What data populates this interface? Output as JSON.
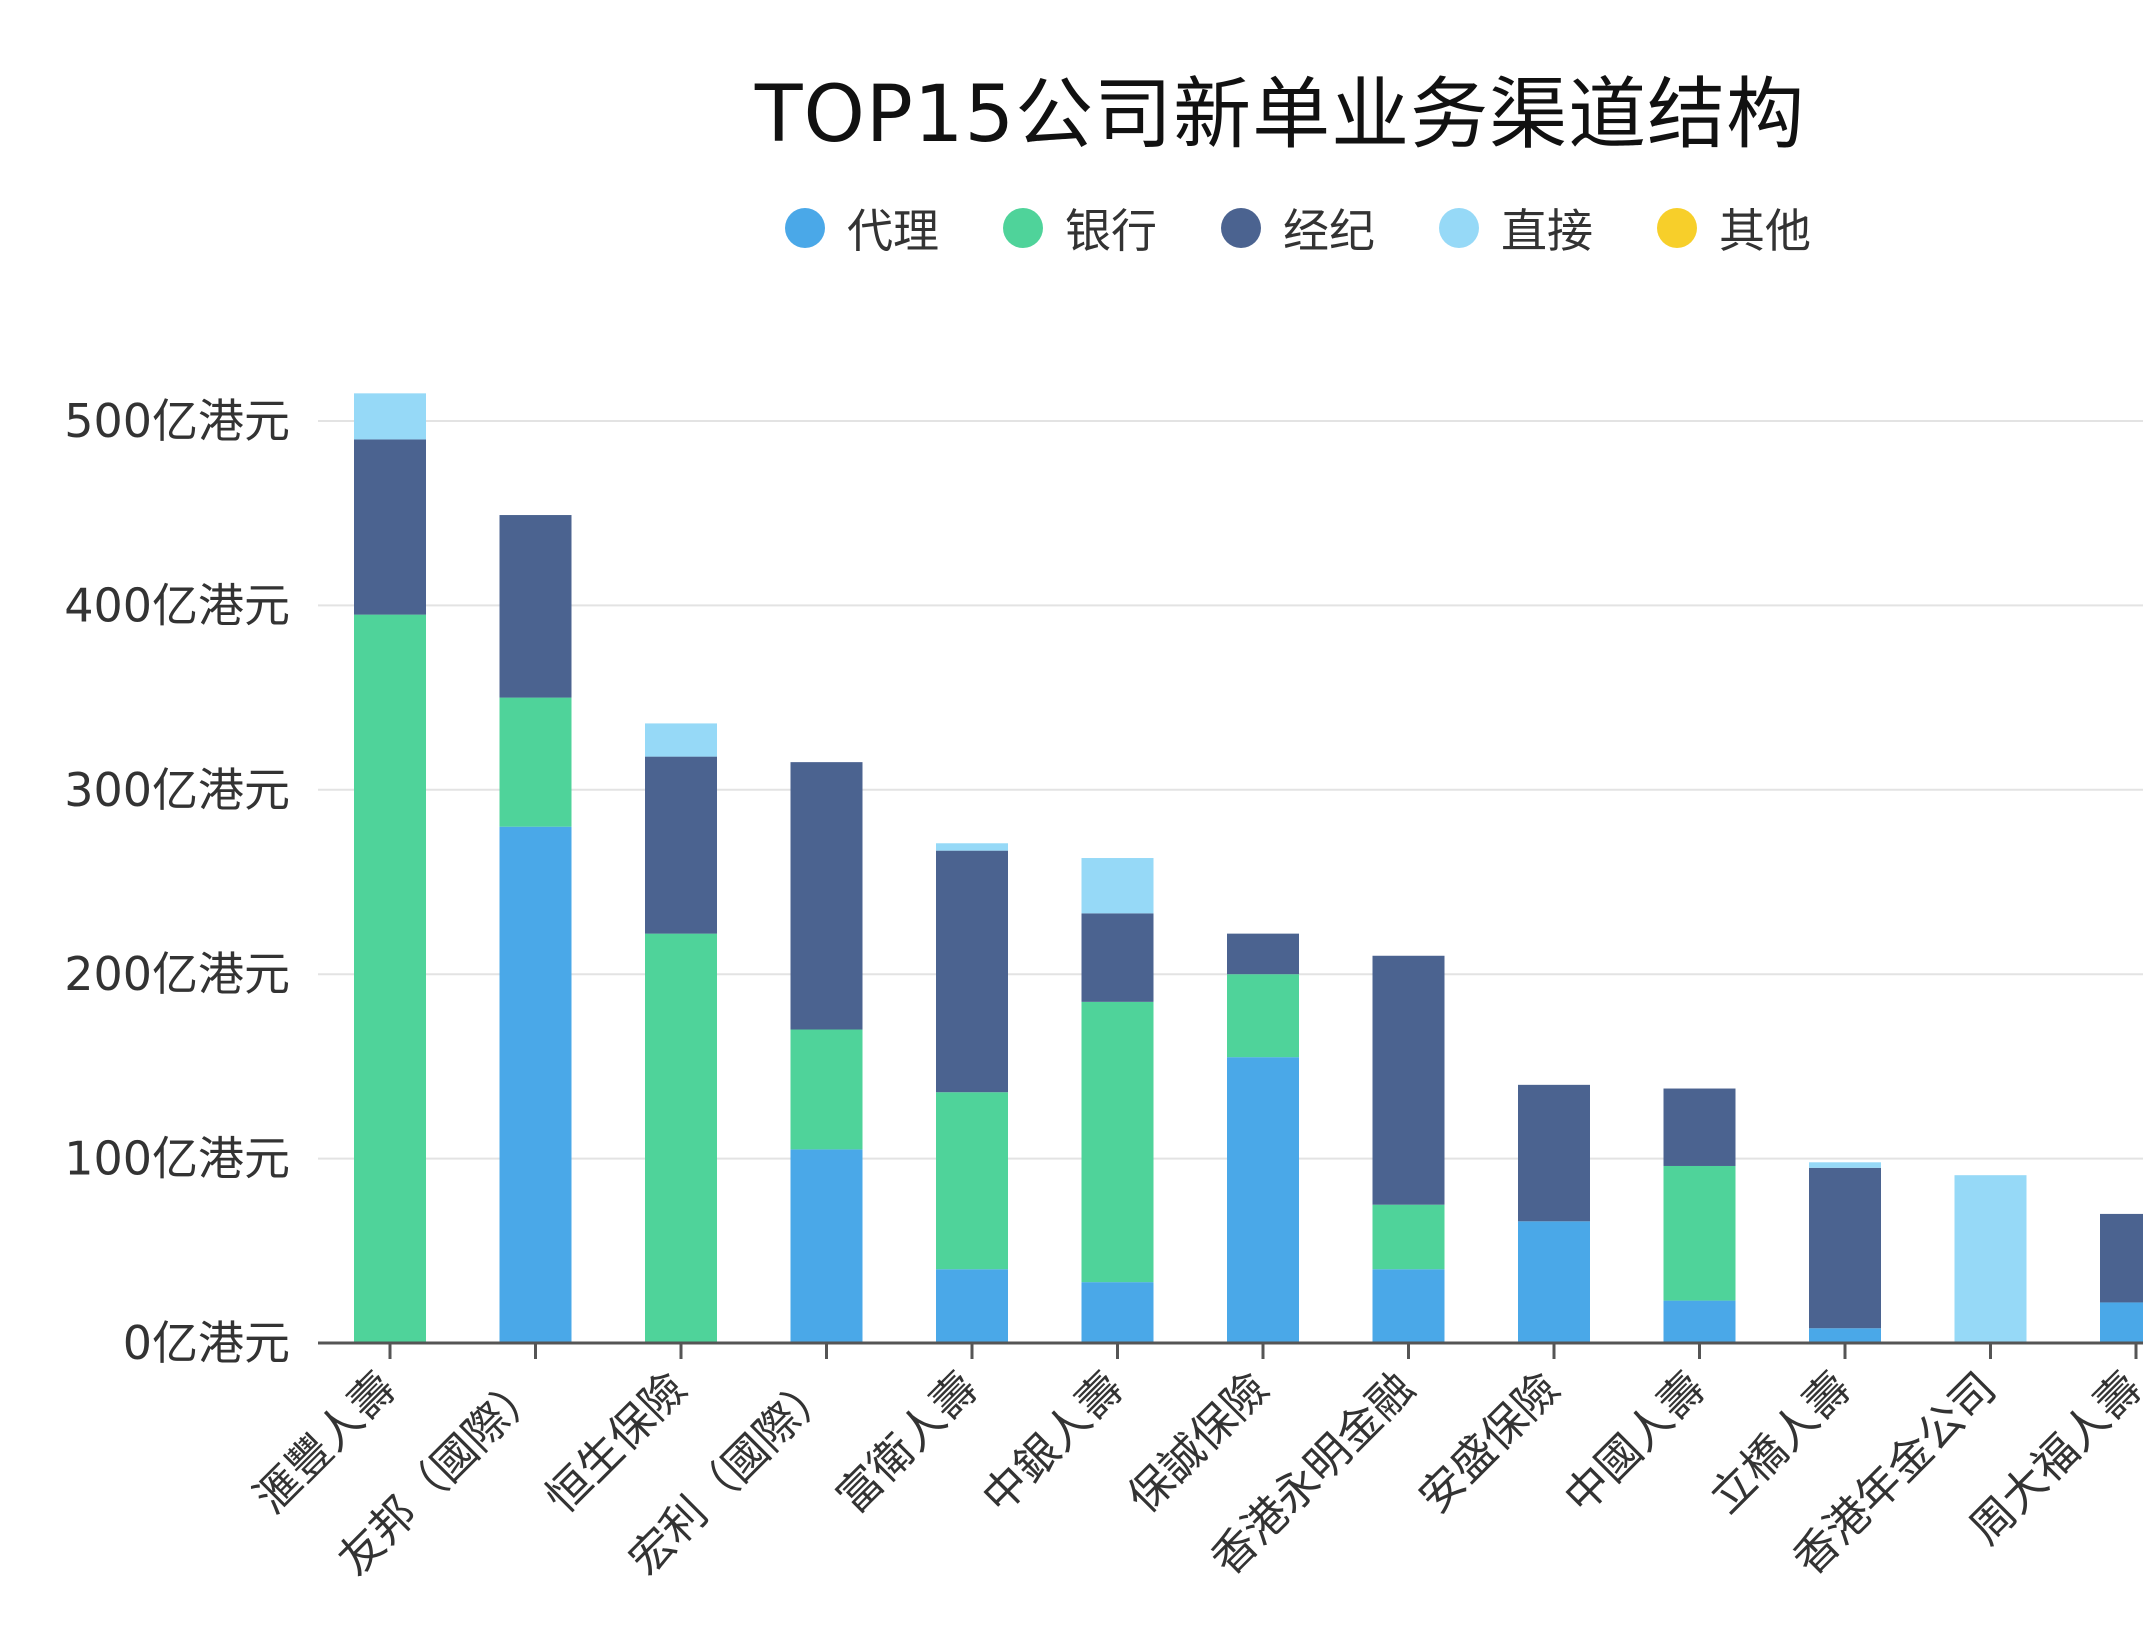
{
  "chart_data": {
    "type": "bar",
    "stacked": true,
    "title": "TOP15公司新单业务渠道结构",
    "xlabel": "",
    "ylabel": "",
    "ylim": [
      0,
      500
    ],
    "yticks": [
      0,
      100,
      200,
      300,
      400,
      500
    ],
    "ytick_labels": [
      "0亿港元",
      "100亿港元",
      "200亿港元",
      "300亿港元",
      "400亿港元",
      "500亿港元"
    ],
    "grid": true,
    "legend_position": "top",
    "categories": [
      "滙豐人壽",
      "友邦（國際）",
      "恒生保險",
      "宏利（國際）",
      "富衛人壽",
      "中銀人壽",
      "保誠保險",
      "香港永明金融",
      "安盛保險",
      "中國人壽",
      "立橋人壽",
      "香港年金公司",
      "周大福人壽"
    ],
    "series": [
      {
        "name": "代理",
        "color": "#4aa8e8",
        "values": [
          0,
          280,
          0,
          105,
          40,
          33,
          155,
          40,
          66,
          23,
          8,
          0,
          22
        ]
      },
      {
        "name": "银行",
        "color": "#4fd39a",
        "values": [
          395,
          70,
          222,
          65,
          96,
          152,
          45,
          35,
          0,
          73,
          0,
          0,
          0
        ]
      },
      {
        "name": "经纪",
        "color": "#4b6390",
        "values": [
          95,
          99,
          96,
          145,
          131,
          48,
          22,
          135,
          74,
          42,
          87,
          0,
          48
        ]
      },
      {
        "name": "直接",
        "color": "#96d9f7",
        "values": [
          25,
          0,
          18,
          0,
          4,
          30,
          0,
          0,
          0,
          0,
          3,
          91,
          0
        ]
      },
      {
        "name": "其他",
        "color": "#f7cf2a",
        "values": [
          0,
          0,
          0,
          0,
          0,
          0,
          0,
          0,
          0,
          0,
          0,
          0,
          0
        ]
      }
    ]
  }
}
